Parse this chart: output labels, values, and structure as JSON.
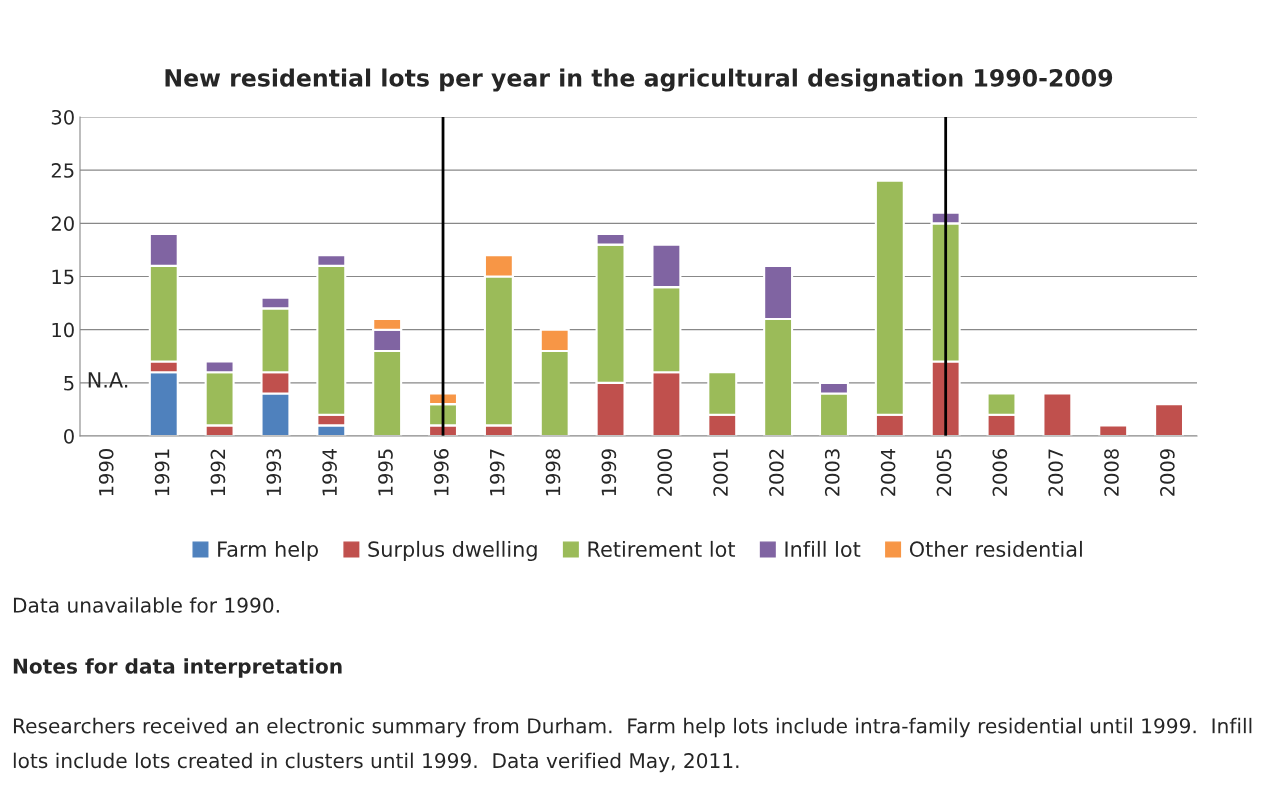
{
  "chart_data": {
    "type": "bar",
    "title": "New residential lots per year in the agricultural designation 1990-2009",
    "stacked": true,
    "categories": [
      "1990",
      "1991",
      "1992",
      "1993",
      "1994",
      "1995",
      "1996",
      "1997",
      "1998",
      "1999",
      "2000",
      "2001",
      "2002",
      "2003",
      "2004",
      "2005",
      "2006",
      "2007",
      "2008",
      "2009"
    ],
    "series": [
      {
        "name": "Farm help",
        "color": "#4f81bd",
        "values": [
          null,
          6,
          0,
          4,
          1,
          0,
          0,
          0,
          0,
          0,
          0,
          0,
          0,
          0,
          0,
          0,
          0,
          0,
          0,
          0
        ]
      },
      {
        "name": "Surplus dwelling",
        "color": "#c0504d",
        "values": [
          null,
          1,
          1,
          2,
          1,
          0,
          1,
          1,
          0,
          5,
          6,
          2,
          0,
          0,
          2,
          7,
          2,
          4,
          1,
          3
        ]
      },
      {
        "name": "Retirement lot",
        "color": "#9bbb59",
        "values": [
          null,
          9,
          5,
          6,
          14,
          8,
          2,
          14,
          8,
          13,
          8,
          4,
          11,
          4,
          22,
          13,
          2,
          0,
          0,
          0
        ]
      },
      {
        "name": "Infill lot",
        "color": "#8064a2",
        "values": [
          null,
          3,
          1,
          1,
          1,
          2,
          0,
          0,
          0,
          1,
          4,
          0,
          5,
          1,
          0,
          1,
          0,
          0,
          0,
          0
        ]
      },
      {
        "name": "Other residential",
        "color": "#f79646",
        "values": [
          null,
          0,
          0,
          0,
          0,
          1,
          1,
          2,
          2,
          0,
          0,
          0,
          0,
          0,
          0,
          0,
          0,
          0,
          0,
          0
        ]
      }
    ],
    "ylim": [
      0,
      30
    ],
    "yticks": [
      0,
      5,
      10,
      15,
      20,
      25,
      30
    ],
    "grid": "y",
    "legend": "bottom",
    "ref_lines": [
      {
        "axis": "x",
        "value": "1996",
        "color": "#000000"
      },
      {
        "axis": "x",
        "value": "2005",
        "color": "#000000"
      }
    ],
    "annotations": [
      "N.A.",
      "Data unavailable for 1990.",
      "Notes for data interpretation",
      "Researchers received an electronic summary from Durham.  Farm help lots include intra-family residential until 1999.  Infill lots include lots created in clusters until 1999.  Data verified May, 2011."
    ]
  }
}
